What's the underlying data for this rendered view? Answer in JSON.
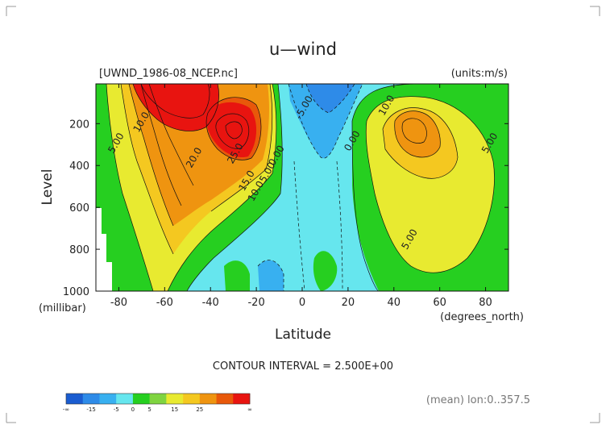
{
  "title": "u—wind",
  "file_label": "[UWND_1986-08_NCEP.nc]",
  "units_label": "(units:m/s)",
  "contour_interval": "CONTOUR INTERVAL = 2.500E+00",
  "footer_right": "(mean) lon:0..357.5",
  "chart_data": {
    "type": "heatmap",
    "title": "u—wind",
    "xlabel": "Latitude",
    "xunits": "(degrees_north)",
    "ylabel": "Level",
    "yunits": "(millibar)",
    "xlim": [
      -90,
      90
    ],
    "ylim": [
      1000,
      10
    ],
    "x_ticks": [
      -80,
      -60,
      -40,
      -20,
      0,
      20,
      40,
      60,
      80
    ],
    "y_ticks": [
      200,
      400,
      600,
      800,
      1000
    ],
    "contour_labels": [
      {
        "text": "10.0",
        "lat": -69,
        "level": 200
      },
      {
        "text": "5.00",
        "lat": -80,
        "level": 300
      },
      {
        "text": "20.0",
        "lat": -46,
        "level": 370
      },
      {
        "text": "25.0",
        "lat": -28,
        "level": 350
      },
      {
        "text": "15.0",
        "lat": -23,
        "level": 480
      },
      {
        "text": "10.0",
        "lat": -19,
        "level": 530
      },
      {
        "text": "5.00",
        "lat": -14,
        "level": 440
      },
      {
        "text": "0.00",
        "lat": -10,
        "level": 360
      },
      {
        "text": "-5.00",
        "lat": 2,
        "level": 130
      },
      {
        "text": "0.00",
        "lat": 23,
        "level": 290
      },
      {
        "text": "10.0",
        "lat": 38,
        "level": 120
      },
      {
        "text": "5.00",
        "lat": 83,
        "level": 300
      },
      {
        "text": "5.00",
        "lat": 48,
        "level": 760
      }
    ],
    "colorbar": {
      "tick_labels": [
        "-∞",
        "-15",
        "-5",
        "0",
        "5",
        "15",
        "25",
        "∞"
      ],
      "colors": [
        "#1a5cd0",
        "#2e8be8",
        "#38b0f0",
        "#66e6ee",
        "#26cf20",
        "#7fd440",
        "#e8ea30",
        "#f4c820",
        "#ef9410",
        "#e8580a",
        "#e81410"
      ]
    }
  }
}
